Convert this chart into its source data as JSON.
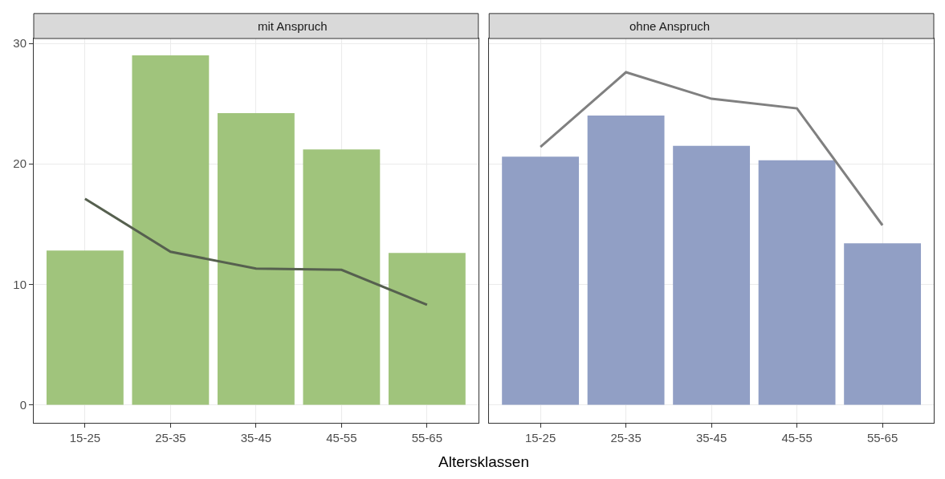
{
  "chart_data": [
    {
      "type": "bar",
      "title": "mit Anspruch",
      "xlabel": "Altersklassen",
      "categories": [
        "15-25",
        "25-35",
        "35-45",
        "45-55",
        "55-65"
      ],
      "ylim": [
        -1.5,
        30.4
      ],
      "yticks": [
        0,
        10,
        20,
        30
      ],
      "grid": true,
      "legend": false,
      "series": [
        {
          "color": "#a0c47c",
          "values": [
            12.8,
            29.0,
            24.2,
            21.2,
            12.6
          ]
        },
        {
          "type": "line",
          "color": "#56604f",
          "values": [
            17.1,
            12.7,
            11.3,
            11.2,
            8.3
          ]
        }
      ]
    },
    {
      "type": "bar",
      "title": "ohne Anspruch",
      "categories": [
        "15-25",
        "25-35",
        "35-45",
        "45-55",
        "55-65"
      ],
      "ylim": [
        -1.5,
        30.4
      ],
      "yticks": [
        0,
        10,
        20,
        30
      ],
      "grid": true,
      "legend": false,
      "tick_labels": "x",
      "series": [
        {
          "color": "#919fc5",
          "values": [
            20.6,
            24.0,
            21.5,
            20.3,
            13.4
          ]
        },
        {
          "type": "line",
          "color": "#808080",
          "values": [
            21.4,
            27.6,
            25.4,
            24.6,
            14.9
          ]
        }
      ]
    }
  ]
}
